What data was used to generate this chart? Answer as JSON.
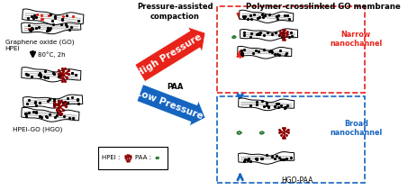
{
  "title": "Polymer-crosslinked GO membrane",
  "bg_color": "#ffffff",
  "fig_width": 4.63,
  "fig_height": 2.11,
  "texts": {
    "go_label": "Graphene oxide (GO)",
    "hpei_label": "HPEI",
    "temp_label": "80°C, 2h",
    "hgo_label": "HPEI-GO (HGO)",
    "pressure_title": "Pressure-assisted\ncompaction",
    "paa_label": "PAA",
    "high_pressure": "High Pressure",
    "low_pressure": "Low Pressure",
    "narrow_label": "Narrow\nnanochannel",
    "broad_label": "Broad\nnanochannel",
    "hgo_paa_label": "HGO-PAA",
    "hpei_legend": "HPEI :",
    "paa_legend": "PAA :"
  },
  "colors": {
    "red": "#e8231a",
    "blue": "#1565c0",
    "dark_red": "#8b0000",
    "green": "#2e7d32",
    "black": "#000000"
  }
}
